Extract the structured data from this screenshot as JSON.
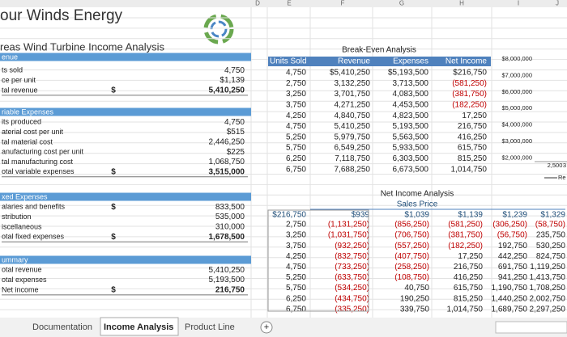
{
  "header": {
    "title": "our Winds Energy",
    "subtitle": "reas Wind Turbine Income Analysis"
  },
  "column_letters": [
    "D",
    "E",
    "F",
    "G",
    "H",
    "I",
    "J"
  ],
  "sections": [
    {
      "title": "enue",
      "rows": [
        {
          "label": "ts sold",
          "value": "4,750"
        },
        {
          "label": "ce per unit",
          "value": "$1,139"
        },
        {
          "label": "tal revenue",
          "currency": "$",
          "value": "5,410,250"
        }
      ]
    },
    {
      "title": "riable Expenses",
      "rows": [
        {
          "label": "its produced",
          "value": "4,750"
        },
        {
          "label": "aterial cost per unit",
          "value": "$515"
        },
        {
          "label": "tal material cost",
          "value": "2,446,250"
        },
        {
          "label": "anufacturing cost per unit",
          "value": "$225"
        },
        {
          "label": "tal manufacturing cost",
          "value": "1,068,750"
        },
        {
          "label": "otal variable expenses",
          "currency": "$",
          "value": "3,515,000"
        }
      ]
    },
    {
      "title": "xed Expenses",
      "rows": [
        {
          "label": "alaries and benefits",
          "currency": "$",
          "value": "833,500"
        },
        {
          "label": "stribution",
          "value": "535,000"
        },
        {
          "label": "iscellaneous",
          "value": "310,000"
        },
        {
          "label": "otal fixed expenses",
          "currency": "$",
          "value": "1,678,500"
        }
      ]
    },
    {
      "title": "ummary",
      "rows": [
        {
          "label": "otal revenue",
          "value": "5,410,250"
        },
        {
          "label": "otal expenses",
          "value": "5,193,500"
        },
        {
          "label": "Net income",
          "currency": "$",
          "value": "216,750"
        }
      ]
    }
  ],
  "break_even": {
    "title": "Break-Even Analysis",
    "columns": [
      "Units Sold",
      "Revenue",
      "Expenses",
      "Net Income"
    ],
    "rows": [
      [
        "4,750",
        "$5,410,250",
        "$5,193,500",
        "$216,750"
      ],
      [
        "2,750",
        "3,132,250",
        "3,713,500",
        "(581,250)"
      ],
      [
        "3,250",
        "3,701,750",
        "4,083,500",
        "(381,750)"
      ],
      [
        "3,750",
        "4,271,250",
        "4,453,500",
        "(182,250)"
      ],
      [
        "4,250",
        "4,840,750",
        "4,823,500",
        "17,250"
      ],
      [
        "4,750",
        "5,410,250",
        "5,193,500",
        "216,750"
      ],
      [
        "5,250",
        "5,979,750",
        "5,563,500",
        "416,250"
      ],
      [
        "5,750",
        "6,549,250",
        "5,933,500",
        "615,750"
      ],
      [
        "6,250",
        "7,118,750",
        "6,303,500",
        "815,250"
      ],
      [
        "6,750",
        "7,688,250",
        "6,673,500",
        "1,014,750"
      ]
    ]
  },
  "net_income": {
    "title": "Net Income Analysis",
    "subtitle": "Sales Price",
    "header": [
      "$216,750",
      "$939",
      "$1,039",
      "$1,139",
      "$1,239",
      "$1,329"
    ],
    "rows": [
      [
        "2,750",
        "(1,131,250)",
        "(856,250)",
        "(581,250)",
        "(306,250)",
        "(58,750)"
      ],
      [
        "3,250",
        "(1,031,750)",
        "(706,750)",
        "(381,750)",
        "(56,750)",
        "235,750"
      ],
      [
        "3,750",
        "(932,250)",
        "(557,250)",
        "(182,250)",
        "192,750",
        "530,250"
      ],
      [
        "4,250",
        "(832,750)",
        "(407,750)",
        "17,250",
        "442,250",
        "824,750"
      ],
      [
        "4,750",
        "(733,250)",
        "(258,250)",
        "216,750",
        "691,750",
        "1,119,250"
      ],
      [
        "5,250",
        "(633,750)",
        "(108,750)",
        "416,250",
        "941,250",
        "1,413,750"
      ],
      [
        "5,750",
        "(534,250)",
        "40,750",
        "615,750",
        "1,190,750",
        "1,708,250"
      ],
      [
        "6,250",
        "(434,750)",
        "190,250",
        "815,250",
        "1,440,250",
        "2,002,750"
      ],
      [
        "6,750",
        "(335,250)",
        "339,750",
        "1,014,750",
        "1,689,750",
        "2,297,250"
      ]
    ]
  },
  "chart_fragment": {
    "y_labels": [
      "$8,000,000",
      "$7,000,000",
      "$6,000,000",
      "$5,000,000",
      "$4,000,000",
      "$3,000,000",
      "$2,000,000"
    ],
    "x_labels": [
      "2,500",
      "3"
    ],
    "legend": "Re"
  },
  "tabs": [
    "Documentation",
    "Income Analysis",
    "Product Line"
  ]
}
